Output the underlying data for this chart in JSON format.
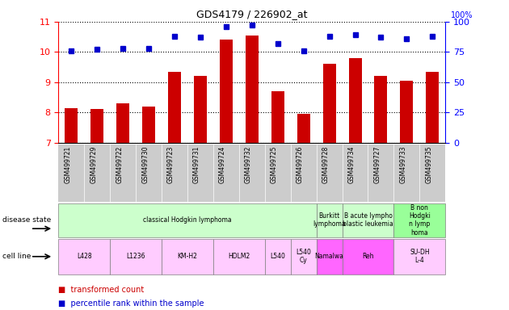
{
  "title": "GDS4179 / 226902_at",
  "samples": [
    "GSM499721",
    "GSM499729",
    "GSM499722",
    "GSM499730",
    "GSM499723",
    "GSM499731",
    "GSM499724",
    "GSM499732",
    "GSM499725",
    "GSM499726",
    "GSM499728",
    "GSM499734",
    "GSM499727",
    "GSM499733",
    "GSM499735"
  ],
  "bar_values": [
    8.15,
    8.1,
    8.3,
    8.2,
    9.35,
    9.2,
    10.4,
    10.55,
    8.7,
    7.95,
    9.6,
    9.8,
    9.2,
    9.05,
    9.35
  ],
  "dot_values": [
    76,
    77,
    78,
    78,
    88,
    87,
    96,
    97,
    82,
    76,
    88,
    89,
    87,
    86,
    88
  ],
  "ylim_left": [
    7,
    11
  ],
  "ylim_right": [
    0,
    100
  ],
  "yticks_left": [
    7,
    8,
    9,
    10,
    11
  ],
  "yticks_right": [
    0,
    25,
    50,
    75,
    100
  ],
  "bar_color": "#cc0000",
  "dot_color": "#0000cc",
  "bg_color": "#ffffff",
  "xtick_bg": "#cccccc",
  "disease_state_groups": [
    {
      "label": "classical Hodgkin lymphoma",
      "start": 0,
      "end": 9,
      "color": "#ccffcc"
    },
    {
      "label": "Burkitt\nlymphoma",
      "start": 10,
      "end": 10,
      "color": "#ccffcc"
    },
    {
      "label": "B acute lympho\nblastic leukemia",
      "start": 11,
      "end": 12,
      "color": "#ccffcc"
    },
    {
      "label": "B non\nHodgki\nn lymp\nhoma",
      "start": 13,
      "end": 14,
      "color": "#99ff99"
    }
  ],
  "cell_line_groups": [
    {
      "label": "L428",
      "start": 0,
      "end": 1,
      "color": "#ffccff"
    },
    {
      "label": "L1236",
      "start": 2,
      "end": 3,
      "color": "#ffccff"
    },
    {
      "label": "KM-H2",
      "start": 4,
      "end": 5,
      "color": "#ffccff"
    },
    {
      "label": "HDLM2",
      "start": 6,
      "end": 7,
      "color": "#ffccff"
    },
    {
      "label": "L540",
      "start": 8,
      "end": 8,
      "color": "#ffccff"
    },
    {
      "label": "L540\nCy",
      "start": 9,
      "end": 9,
      "color": "#ffccff"
    },
    {
      "label": "Namalwa",
      "start": 10,
      "end": 10,
      "color": "#ff66ff"
    },
    {
      "label": "Reh",
      "start": 11,
      "end": 12,
      "color": "#ff66ff"
    },
    {
      "label": "SU-DH\nL-4",
      "start": 13,
      "end": 14,
      "color": "#ffccff"
    }
  ]
}
